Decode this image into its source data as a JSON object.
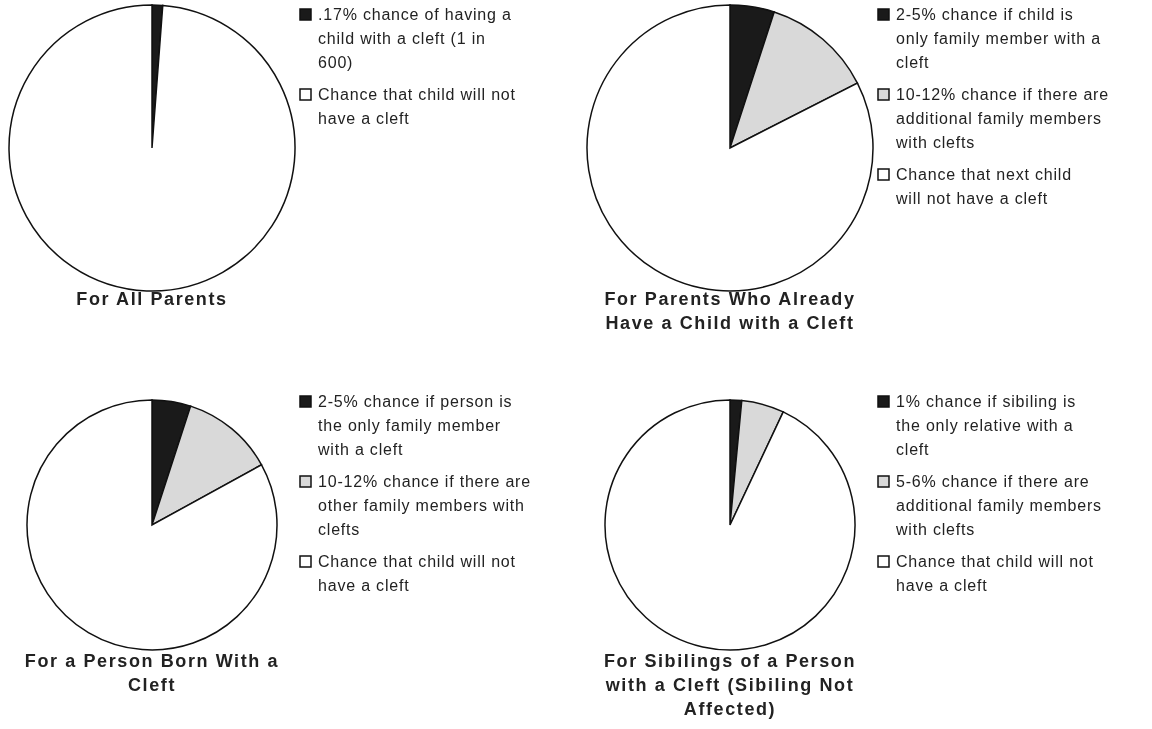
{
  "chart_data": [
    {
      "type": "pie",
      "title": "For All Parents",
      "categories": [
        ".17% chance of having a child with a cleft (1 in 600)",
        "Chance that child will not have a cleft"
      ],
      "values": [
        1.2,
        98.8
      ],
      "colors": [
        "#1a1a1a",
        "#ffffff"
      ],
      "legend": "right"
    },
    {
      "type": "pie",
      "title": "For Parents Who Already Have a Child with a Cleft",
      "categories": [
        "2-5% chance if child is only family member with a cleft",
        "10-12% chance if there are additional family members with clefts",
        "Chance that next child will not have a cleft"
      ],
      "values": [
        5,
        12.5,
        82.5
      ],
      "colors": [
        "#1a1a1a",
        "#d9d9d9",
        "#ffffff"
      ],
      "legend": "right"
    },
    {
      "type": "pie",
      "title": "For a Person Born With a Cleft",
      "categories": [
        "2-5% chance if person is the only family member with a cleft",
        "10-12% chance if there are other family members with clefts",
        "Chance that child will not have a cleft"
      ],
      "values": [
        5,
        12,
        83
      ],
      "colors": [
        "#1a1a1a",
        "#d9d9d9",
        "#ffffff"
      ],
      "legend": "right"
    },
    {
      "type": "pie",
      "title": "For Sibilings of a Person with a Cleft (Sibiling Not Affected)",
      "categories": [
        "1% chance if sibiling is the only relative with a cleft",
        "5-6% chance if there are additional family members with clefts",
        "Chance that child will not have a cleft"
      ],
      "values": [
        1.5,
        5.5,
        93
      ],
      "colors": [
        "#1a1a1a",
        "#d9d9d9",
        "#ffffff"
      ],
      "legend": "right"
    }
  ]
}
